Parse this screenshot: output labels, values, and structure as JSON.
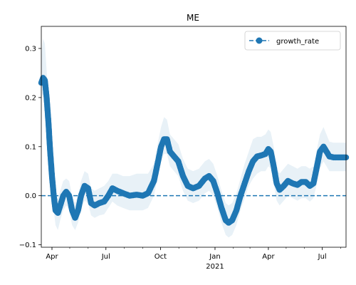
{
  "chart_data": {
    "type": "line",
    "title": "ME",
    "xlabel": "",
    "ylabel": "",
    "x_tick_labels": [
      {
        "date": "2020-04-01",
        "label": "Apr"
      },
      {
        "date": "2020-07-01",
        "label": "Jul"
      },
      {
        "date": "2020-10-01",
        "label": "Oct"
      },
      {
        "date": "2021-01-01",
        "label": "Jan",
        "sublabel": "2021"
      },
      {
        "date": "2021-04-01",
        "label": "Apr"
      },
      {
        "date": "2021-07-01",
        "label": "Jul"
      }
    ],
    "xlim": [
      "2020-03-14",
      "2021-08-10"
    ],
    "y_ticks": [
      "0.3",
      "0.2",
      "0.1",
      "0.0",
      "−0.1"
    ],
    "y_tick_values": [
      0.3,
      0.2,
      0.1,
      0.0,
      -0.1
    ],
    "ylim": [
      -0.105,
      0.345
    ],
    "legend": {
      "placement": "top-right",
      "entries": [
        "growth_rate"
      ]
    },
    "reference_line": {
      "y": 0.0,
      "style": "dashed"
    },
    "colors": {
      "series": "#1f77b4",
      "band": "#1f77b4",
      "band_opacity": 0.1
    },
    "series": [
      {
        "name": "growth_rate",
        "marker": "circle",
        "linestyle": "dashed",
        "points": [
          {
            "x": "2020-03-14",
            "y": 0.23
          },
          {
            "x": "2020-03-17",
            "y": 0.24
          },
          {
            "x": "2020-03-20",
            "y": 0.235
          },
          {
            "x": "2020-03-23",
            "y": 0.2
          },
          {
            "x": "2020-03-26",
            "y": 0.15
          },
          {
            "x": "2020-03-29",
            "y": 0.09
          },
          {
            "x": "2020-04-01",
            "y": 0.04
          },
          {
            "x": "2020-04-04",
            "y": 0.0
          },
          {
            "x": "2020-04-07",
            "y": -0.03
          },
          {
            "x": "2020-04-11",
            "y": -0.035
          },
          {
            "x": "2020-04-15",
            "y": -0.02
          },
          {
            "x": "2020-04-20",
            "y": 0.0
          },
          {
            "x": "2020-04-25",
            "y": 0.008
          },
          {
            "x": "2020-04-30",
            "y": 0.0
          },
          {
            "x": "2020-05-05",
            "y": -0.03
          },
          {
            "x": "2020-05-10",
            "y": -0.045
          },
          {
            "x": "2020-05-15",
            "y": -0.03
          },
          {
            "x": "2020-05-20",
            "y": 0.0
          },
          {
            "x": "2020-05-26",
            "y": 0.02
          },
          {
            "x": "2020-06-01",
            "y": 0.015
          },
          {
            "x": "2020-06-06",
            "y": -0.015
          },
          {
            "x": "2020-06-12",
            "y": -0.02
          },
          {
            "x": "2020-06-20",
            "y": -0.015
          },
          {
            "x": "2020-06-28",
            "y": -0.012
          },
          {
            "x": "2020-07-05",
            "y": 0.0
          },
          {
            "x": "2020-07-12",
            "y": 0.015
          },
          {
            "x": "2020-07-20",
            "y": 0.01
          },
          {
            "x": "2020-07-30",
            "y": 0.005
          },
          {
            "x": "2020-08-10",
            "y": 0.0
          },
          {
            "x": "2020-08-22",
            "y": 0.002
          },
          {
            "x": "2020-09-01",
            "y": 0.0
          },
          {
            "x": "2020-09-10",
            "y": 0.005
          },
          {
            "x": "2020-09-20",
            "y": 0.03
          },
          {
            "x": "2020-09-27",
            "y": 0.07
          },
          {
            "x": "2020-10-02",
            "y": 0.1
          },
          {
            "x": "2020-10-07",
            "y": 0.115
          },
          {
            "x": "2020-10-12",
            "y": 0.115
          },
          {
            "x": "2020-10-17",
            "y": 0.09
          },
          {
            "x": "2020-10-24",
            "y": 0.08
          },
          {
            "x": "2020-10-31",
            "y": 0.07
          },
          {
            "x": "2020-11-08",
            "y": 0.04
          },
          {
            "x": "2020-11-16",
            "y": 0.02
          },
          {
            "x": "2020-11-25",
            "y": 0.015
          },
          {
            "x": "2020-12-05",
            "y": 0.02
          },
          {
            "x": "2020-12-15",
            "y": 0.035
          },
          {
            "x": "2020-12-22",
            "y": 0.04
          },
          {
            "x": "2020-12-29",
            "y": 0.03
          },
          {
            "x": "2021-01-05",
            "y": 0.005
          },
          {
            "x": "2021-01-12",
            "y": -0.025
          },
          {
            "x": "2021-01-19",
            "y": -0.05
          },
          {
            "x": "2021-01-24",
            "y": -0.055
          },
          {
            "x": "2021-01-30",
            "y": -0.05
          },
          {
            "x": "2021-02-06",
            "y": -0.03
          },
          {
            "x": "2021-02-13",
            "y": 0.0
          },
          {
            "x": "2021-02-20",
            "y": 0.025
          },
          {
            "x": "2021-02-27",
            "y": 0.05
          },
          {
            "x": "2021-03-06",
            "y": 0.07
          },
          {
            "x": "2021-03-13",
            "y": 0.08
          },
          {
            "x": "2021-03-20",
            "y": 0.082
          },
          {
            "x": "2021-03-27",
            "y": 0.085
          },
          {
            "x": "2021-04-01",
            "y": 0.095
          },
          {
            "x": "2021-04-05",
            "y": 0.09
          },
          {
            "x": "2021-04-10",
            "y": 0.06
          },
          {
            "x": "2021-04-15",
            "y": 0.025
          },
          {
            "x": "2021-04-20",
            "y": 0.012
          },
          {
            "x": "2021-04-27",
            "y": 0.02
          },
          {
            "x": "2021-05-04",
            "y": 0.03
          },
          {
            "x": "2021-05-12",
            "y": 0.025
          },
          {
            "x": "2021-05-20",
            "y": 0.022
          },
          {
            "x": "2021-05-27",
            "y": 0.028
          },
          {
            "x": "2021-06-03",
            "y": 0.028
          },
          {
            "x": "2021-06-10",
            "y": 0.02
          },
          {
            "x": "2021-06-16",
            "y": 0.025
          },
          {
            "x": "2021-06-22",
            "y": 0.06
          },
          {
            "x": "2021-06-27",
            "y": 0.09
          },
          {
            "x": "2021-07-03",
            "y": 0.1
          },
          {
            "x": "2021-07-08",
            "y": 0.09
          },
          {
            "x": "2021-07-13",
            "y": 0.08
          },
          {
            "x": "2021-07-20",
            "y": 0.078
          },
          {
            "x": "2021-07-30",
            "y": 0.078
          },
          {
            "x": "2021-08-10",
            "y": 0.078
          }
        ],
        "band": [
          {
            "x": "2020-03-14",
            "lo": 0.2,
            "hi": 0.285
          },
          {
            "x": "2020-03-17",
            "lo": 0.205,
            "hi": 0.32
          },
          {
            "x": "2020-03-20",
            "lo": 0.2,
            "hi": 0.31
          },
          {
            "x": "2020-03-23",
            "lo": 0.16,
            "hi": 0.255
          },
          {
            "x": "2020-03-26",
            "lo": 0.11,
            "hi": 0.2
          },
          {
            "x": "2020-03-29",
            "lo": 0.05,
            "hi": 0.14
          },
          {
            "x": "2020-04-01",
            "lo": 0.01,
            "hi": 0.08
          },
          {
            "x": "2020-04-04",
            "lo": -0.03,
            "hi": 0.04
          },
          {
            "x": "2020-04-07",
            "lo": -0.06,
            "hi": 0.0
          },
          {
            "x": "2020-04-11",
            "lo": -0.07,
            "hi": -0.005
          },
          {
            "x": "2020-04-15",
            "lo": -0.05,
            "hi": 0.01
          },
          {
            "x": "2020-04-20",
            "lo": -0.03,
            "hi": 0.03
          },
          {
            "x": "2020-04-25",
            "lo": -0.02,
            "hi": 0.035
          },
          {
            "x": "2020-04-30",
            "lo": -0.03,
            "hi": 0.03
          },
          {
            "x": "2020-05-05",
            "lo": -0.06,
            "hi": 0.0
          },
          {
            "x": "2020-05-10",
            "lo": -0.07,
            "hi": -0.015
          },
          {
            "x": "2020-05-15",
            "lo": -0.055,
            "hi": 0.0
          },
          {
            "x": "2020-05-20",
            "lo": -0.03,
            "hi": 0.03
          },
          {
            "x": "2020-05-26",
            "lo": -0.01,
            "hi": 0.05
          },
          {
            "x": "2020-06-01",
            "lo": -0.015,
            "hi": 0.045
          },
          {
            "x": "2020-06-06",
            "lo": -0.04,
            "hi": 0.015
          },
          {
            "x": "2020-06-12",
            "lo": -0.045,
            "hi": 0.01
          },
          {
            "x": "2020-06-20",
            "lo": -0.04,
            "hi": 0.015
          },
          {
            "x": "2020-06-28",
            "lo": -0.038,
            "hi": 0.02
          },
          {
            "x": "2020-07-05",
            "lo": -0.025,
            "hi": 0.03
          },
          {
            "x": "2020-07-12",
            "lo": -0.012,
            "hi": 0.045
          },
          {
            "x": "2020-07-20",
            "lo": -0.02,
            "hi": 0.045
          },
          {
            "x": "2020-07-30",
            "lo": -0.025,
            "hi": 0.04
          },
          {
            "x": "2020-08-10",
            "lo": -0.03,
            "hi": 0.04
          },
          {
            "x": "2020-08-22",
            "lo": -0.03,
            "hi": 0.045
          },
          {
            "x": "2020-09-01",
            "lo": -0.03,
            "hi": 0.045
          },
          {
            "x": "2020-09-10",
            "lo": -0.025,
            "hi": 0.045
          },
          {
            "x": "2020-09-20",
            "lo": 0.0,
            "hi": 0.065
          },
          {
            "x": "2020-09-27",
            "lo": 0.04,
            "hi": 0.11
          },
          {
            "x": "2020-10-02",
            "lo": 0.07,
            "hi": 0.14
          },
          {
            "x": "2020-10-07",
            "lo": 0.085,
            "hi": 0.16
          },
          {
            "x": "2020-10-12",
            "lo": 0.085,
            "hi": 0.155
          },
          {
            "x": "2020-10-17",
            "lo": 0.06,
            "hi": 0.125
          },
          {
            "x": "2020-10-24",
            "lo": 0.05,
            "hi": 0.115
          },
          {
            "x": "2020-10-31",
            "lo": 0.04,
            "hi": 0.105
          },
          {
            "x": "2020-11-08",
            "lo": 0.01,
            "hi": 0.075
          },
          {
            "x": "2020-11-16",
            "lo": -0.01,
            "hi": 0.055
          },
          {
            "x": "2020-11-25",
            "lo": -0.015,
            "hi": 0.05
          },
          {
            "x": "2020-12-05",
            "lo": -0.01,
            "hi": 0.055
          },
          {
            "x": "2020-12-15",
            "lo": 0.005,
            "hi": 0.07
          },
          {
            "x": "2020-12-22",
            "lo": 0.01,
            "hi": 0.075
          },
          {
            "x": "2020-12-29",
            "lo": 0.0,
            "hi": 0.065
          },
          {
            "x": "2021-01-05",
            "lo": -0.025,
            "hi": 0.04
          },
          {
            "x": "2021-01-12",
            "lo": -0.055,
            "hi": 0.01
          },
          {
            "x": "2021-01-19",
            "lo": -0.08,
            "hi": -0.015
          },
          {
            "x": "2021-01-24",
            "lo": -0.085,
            "hi": -0.02
          },
          {
            "x": "2021-01-30",
            "lo": -0.08,
            "hi": -0.015
          },
          {
            "x": "2021-02-06",
            "lo": -0.06,
            "hi": 0.005
          },
          {
            "x": "2021-02-13",
            "lo": -0.03,
            "hi": 0.035
          },
          {
            "x": "2021-02-20",
            "lo": -0.005,
            "hi": 0.065
          },
          {
            "x": "2021-02-27",
            "lo": 0.02,
            "hi": 0.09
          },
          {
            "x": "2021-03-06",
            "lo": 0.035,
            "hi": 0.115
          },
          {
            "x": "2021-03-13",
            "lo": 0.045,
            "hi": 0.12
          },
          {
            "x": "2021-03-20",
            "lo": 0.05,
            "hi": 0.12
          },
          {
            "x": "2021-03-27",
            "lo": 0.05,
            "hi": 0.125
          },
          {
            "x": "2021-04-01",
            "lo": 0.06,
            "hi": 0.135
          },
          {
            "x": "2021-04-05",
            "lo": 0.055,
            "hi": 0.13
          },
          {
            "x": "2021-04-10",
            "lo": 0.025,
            "hi": 0.1
          },
          {
            "x": "2021-04-15",
            "lo": -0.01,
            "hi": 0.06
          },
          {
            "x": "2021-04-20",
            "lo": -0.02,
            "hi": 0.045
          },
          {
            "x": "2021-04-27",
            "lo": -0.01,
            "hi": 0.055
          },
          {
            "x": "2021-05-04",
            "lo": 0.0,
            "hi": 0.065
          },
          {
            "x": "2021-05-12",
            "lo": -0.005,
            "hi": 0.06
          },
          {
            "x": "2021-05-20",
            "lo": -0.01,
            "hi": 0.055
          },
          {
            "x": "2021-05-27",
            "lo": -0.005,
            "hi": 0.06
          },
          {
            "x": "2021-06-03",
            "lo": -0.005,
            "hi": 0.06
          },
          {
            "x": "2021-06-10",
            "lo": -0.012,
            "hi": 0.055
          },
          {
            "x": "2021-06-16",
            "lo": -0.005,
            "hi": 0.06
          },
          {
            "x": "2021-06-22",
            "lo": 0.025,
            "hi": 0.095
          },
          {
            "x": "2021-06-27",
            "lo": 0.055,
            "hi": 0.125
          },
          {
            "x": "2021-07-03",
            "lo": 0.07,
            "hi": 0.14
          },
          {
            "x": "2021-07-08",
            "lo": 0.06,
            "hi": 0.125
          },
          {
            "x": "2021-07-13",
            "lo": 0.05,
            "hi": 0.11
          },
          {
            "x": "2021-07-20",
            "lo": 0.05,
            "hi": 0.108
          },
          {
            "x": "2021-07-30",
            "lo": 0.05,
            "hi": 0.108
          },
          {
            "x": "2021-08-10",
            "lo": 0.05,
            "hi": 0.108
          }
        ]
      }
    ]
  }
}
